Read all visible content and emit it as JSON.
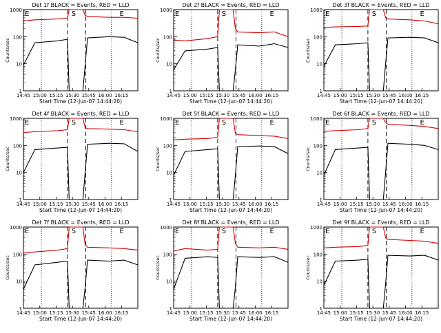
{
  "chart_data": [
    {
      "type": "line",
      "title": "Det 1f BLACK = Events, RED = LLD",
      "ylabel": "Counts/sec",
      "xlabel": "Start Time (12-Jun-07 14:44:20)",
      "yscale": "log",
      "ylim": [
        1,
        1000
      ],
      "x_ticks": [
        "14:45",
        "15:00",
        "15:15",
        "15:30",
        "15:45",
        "16:00",
        "16:15"
      ],
      "y_ticks": [
        "1",
        "10",
        "100",
        "1000"
      ],
      "markers": {
        "E1": "E",
        "S": "S",
        "E2": "E"
      },
      "series": [
        {
          "color": "#d00000",
          "values": [
            380,
            420,
            450,
            480,
            1000,
            1000,
            620,
            560,
            520,
            520,
            480
          ]
        },
        {
          "color": "#000000",
          "values": [
            9,
            60,
            70,
            80,
            1,
            1,
            9,
            90,
            100,
            95,
            60
          ]
        }
      ]
    },
    {
      "type": "line",
      "title": "Det 2f BLACK = Events, RED = LLD",
      "ylabel": "Counts/sec",
      "xlabel": "Start Time (12-Jun-07 14:44:20)",
      "yscale": "log",
      "ylim": [
        1,
        1000
      ],
      "x_ticks": [
        "14:45",
        "15:00",
        "15:15",
        "15:30",
        "15:45",
        "16:00",
        "16:15"
      ],
      "y_ticks": [
        "1",
        "10",
        "100",
        "1000"
      ],
      "markers": {
        "E1": "E",
        "S": "S",
        "E2": "E"
      },
      "series": [
        {
          "color": "#d00000",
          "values": [
            75,
            70,
            85,
            100,
            1000,
            1000,
            200,
            150,
            140,
            150,
            100
          ]
        },
        {
          "color": "#000000",
          "values": [
            6,
            30,
            35,
            40,
            1,
            1,
            6,
            50,
            45,
            55,
            40
          ]
        }
      ]
    },
    {
      "type": "line",
      "title": "Det 3f BLACK = Events, RED = LLD",
      "ylabel": "Counts/sec",
      "xlabel": "Start Time (12-Jun-07 14:44:20)",
      "yscale": "log",
      "ylim": [
        1,
        1000
      ],
      "x_ticks": [
        "14:45",
        "15:00",
        "15:15",
        "15:30",
        "15:45",
        "16:00",
        "16:15"
      ],
      "y_ticks": [
        "1",
        "10",
        "100",
        "1000"
      ],
      "markers": {
        "E1": "E",
        "S": "S",
        "E2": "E"
      },
      "series": [
        {
          "color": "#d00000",
          "values": [
            220,
            230,
            240,
            250,
            1000,
            1000,
            500,
            450,
            420,
            380,
            300
          ]
        },
        {
          "color": "#000000",
          "values": [
            8,
            50,
            55,
            60,
            1,
            1,
            10,
            90,
            95,
            90,
            60
          ]
        }
      ]
    },
    {
      "type": "line",
      "title": "Det 4f BLACK = Events, RED = LLD",
      "ylabel": "Counts/sec",
      "xlabel": "Start Time (12-Jun-07 14:44:20)",
      "yscale": "log",
      "ylim": [
        1,
        1000
      ],
      "x_ticks": [
        "14:45",
        "15:00",
        "15:15",
        "15:30",
        "15:45",
        "16:00",
        "16:15"
      ],
      "y_ticks": [
        "1",
        "10",
        "100",
        "1000"
      ],
      "markers": {
        "E1": "E",
        "S": "S",
        "E2": "E"
      },
      "series": [
        {
          "color": "#d00000",
          "values": [
            300,
            320,
            350,
            380,
            1000,
            1000,
            450,
            420,
            400,
            380,
            320
          ]
        },
        {
          "color": "#000000",
          "values": [
            10,
            70,
            80,
            85,
            1,
            1,
            10,
            110,
            120,
            115,
            60
          ]
        }
      ]
    },
    {
      "type": "line",
      "title": "Det 5f BLACK = Events, RED = LLD",
      "ylabel": "Counts/sec",
      "xlabel": "Start Time (12-Jun-07 14:44:20)",
      "yscale": "log",
      "ylim": [
        1,
        1000
      ],
      "x_ticks": [
        "14:45",
        "15:00",
        "15:15",
        "15:30",
        "15:45",
        "16:00",
        "16:15"
      ],
      "y_ticks": [
        "1",
        "10",
        "100",
        "1000"
      ],
      "markers": {
        "E1": "E",
        "S": "S",
        "E2": "E"
      },
      "series": [
        {
          "color": "#d00000",
          "values": [
            160,
            170,
            180,
            200,
            1000,
            1000,
            280,
            250,
            230,
            220,
            180
          ]
        },
        {
          "color": "#000000",
          "values": [
            8,
            60,
            70,
            75,
            1,
            1,
            8,
            90,
            95,
            90,
            50
          ]
        }
      ]
    },
    {
      "type": "line",
      "title": "Det 6f BLACK = Events, RED = LLD",
      "ylabel": "Counts/sec",
      "xlabel": "Start Time (12-Jun-07 14:44:20)",
      "yscale": "log",
      "ylim": [
        1,
        1000
      ],
      "x_ticks": [
        "14:45",
        "15:00",
        "15:15",
        "15:30",
        "15:45",
        "16:00",
        "16:15"
      ],
      "y_ticks": [
        "1",
        "10",
        "100",
        "1000"
      ],
      "markers": {
        "E1": "E",
        "S": "S",
        "E2": "E"
      },
      "series": [
        {
          "color": "#d00000",
          "values": [
            330,
            350,
            380,
            420,
            1000,
            1000,
            700,
            600,
            550,
            500,
            420
          ]
        },
        {
          "color": "#000000",
          "values": [
            8,
            70,
            80,
            85,
            1,
            1,
            10,
            120,
            110,
            100,
            70
          ]
        }
      ]
    },
    {
      "type": "line",
      "title": "Det 7f BLACK = Events, RED = LLD",
      "ylabel": "Counts/sec",
      "xlabel": "Start Time (12-Jun-07 14:44:20)",
      "yscale": "log",
      "ylim": [
        1,
        1000
      ],
      "x_ticks": [
        "14:45",
        "15:00",
        "15:15",
        "15:30",
        "15:45",
        "16:00",
        "16:15"
      ],
      "y_ticks": [
        "1",
        "10",
        "100",
        "1000"
      ],
      "markers": {
        "E1": "E",
        "S": "S",
        "E2": "E"
      },
      "series": [
        {
          "color": "#d00000",
          "values": [
            110,
            120,
            140,
            160,
            1000,
            1000,
            220,
            180,
            170,
            160,
            140
          ]
        },
        {
          "color": "#000000",
          "values": [
            5,
            40,
            50,
            55,
            1,
            1,
            6,
            60,
            55,
            60,
            40
          ]
        }
      ]
    },
    {
      "type": "line",
      "title": "Det 8f BLACK = Events, RED = LLD",
      "ylabel": "Counts/sec",
      "xlabel": "Start Time (12-Jun-07 14:44:20)",
      "yscale": "log",
      "ylim": [
        1,
        1000
      ],
      "x_ticks": [
        "14:45",
        "15:00",
        "15:15",
        "15:30",
        "15:45",
        "16:00",
        "16:15"
      ],
      "y_ticks": [
        "1",
        "10",
        "100",
        "1000"
      ],
      "markers": {
        "E1": "E",
        "S": "S",
        "E2": "E"
      },
      "series": [
        {
          "color": "#d00000",
          "values": [
            130,
            160,
            140,
            150,
            1000,
            1000,
            250,
            180,
            170,
            180,
            150
          ]
        },
        {
          "color": "#000000",
          "values": [
            5,
            70,
            80,
            75,
            1,
            1,
            6,
            80,
            75,
            80,
            50
          ]
        }
      ]
    },
    {
      "type": "line",
      "title": "Det 9f BLACK = Events, RED = LLD",
      "ylabel": "Counts/sec",
      "xlabel": "Start Time (12-Jun-07 14:44:20)",
      "yscale": "log",
      "ylim": [
        1,
        1000
      ],
      "x_ticks": [
        "14:45",
        "15:00",
        "15:15",
        "15:30",
        "15:45",
        "16:00",
        "16:15"
      ],
      "y_ticks": [
        "1",
        "10",
        "100",
        "1000"
      ],
      "markers": {
        "E1": "E",
        "S": "S",
        "E2": "E"
      },
      "series": [
        {
          "color": "#d00000",
          "values": [
            170,
            180,
            190,
            210,
            1000,
            1000,
            400,
            350,
            320,
            300,
            250
          ]
        },
        {
          "color": "#000000",
          "values": [
            7,
            55,
            60,
            65,
            1,
            1,
            8,
            90,
            85,
            90,
            60
          ]
        }
      ]
    }
  ]
}
